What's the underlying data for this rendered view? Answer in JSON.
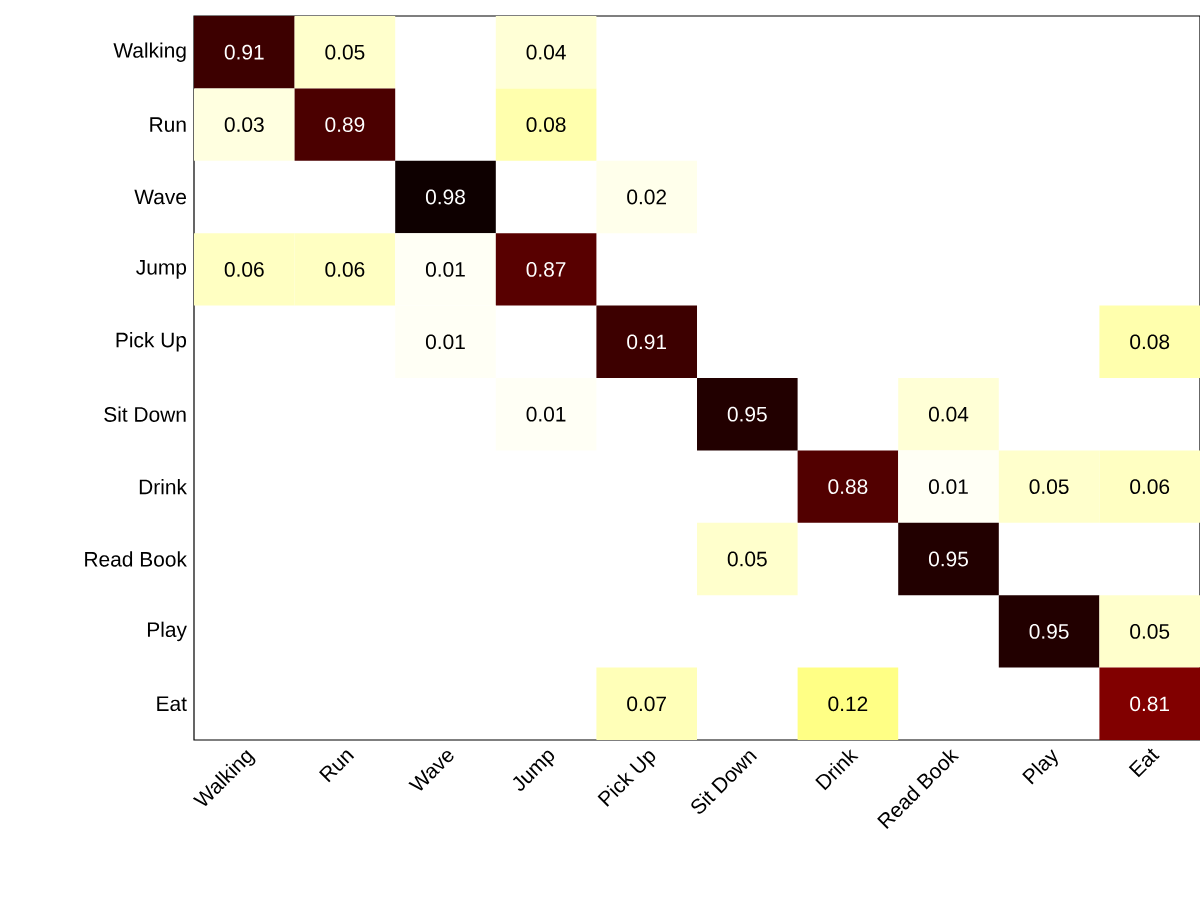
{
  "chart_data": {
    "type": "heatmap",
    "categories": [
      "Walking",
      "Run",
      "Wave",
      "Jump",
      "Pick Up",
      "Sit Down",
      "Drink",
      "Read Book",
      "Play",
      "Eat"
    ],
    "y_categories": [
      "Walking",
      "Run",
      "Wave",
      "Jump",
      "Pick Up",
      "Sit Down",
      "Drink",
      "Read Book",
      "Play",
      "Eat"
    ],
    "cells": [
      [
        0.91,
        0.05,
        null,
        0.04,
        null,
        null,
        null,
        null,
        null,
        null
      ],
      [
        0.03,
        0.89,
        null,
        0.08,
        null,
        null,
        null,
        null,
        null,
        null
      ],
      [
        null,
        null,
        0.98,
        null,
        0.02,
        null,
        null,
        null,
        null,
        null
      ],
      [
        0.06,
        0.06,
        0.01,
        0.87,
        null,
        null,
        null,
        null,
        null,
        null
      ],
      [
        null,
        null,
        0.01,
        null,
        0.91,
        null,
        null,
        null,
        null,
        0.08
      ],
      [
        null,
        null,
        null,
        0.01,
        null,
        0.95,
        null,
        0.04,
        null,
        null
      ],
      [
        null,
        null,
        null,
        null,
        null,
        null,
        0.88,
        0.01,
        0.05,
        0.06
      ],
      [
        null,
        null,
        null,
        null,
        null,
        0.05,
        null,
        0.95,
        null,
        null
      ],
      [
        null,
        null,
        null,
        null,
        null,
        null,
        null,
        null,
        0.95,
        0.05
      ],
      [
        null,
        null,
        null,
        null,
        0.07,
        null,
        0.12,
        null,
        null,
        0.81
      ]
    ],
    "data_labels": true
  }
}
